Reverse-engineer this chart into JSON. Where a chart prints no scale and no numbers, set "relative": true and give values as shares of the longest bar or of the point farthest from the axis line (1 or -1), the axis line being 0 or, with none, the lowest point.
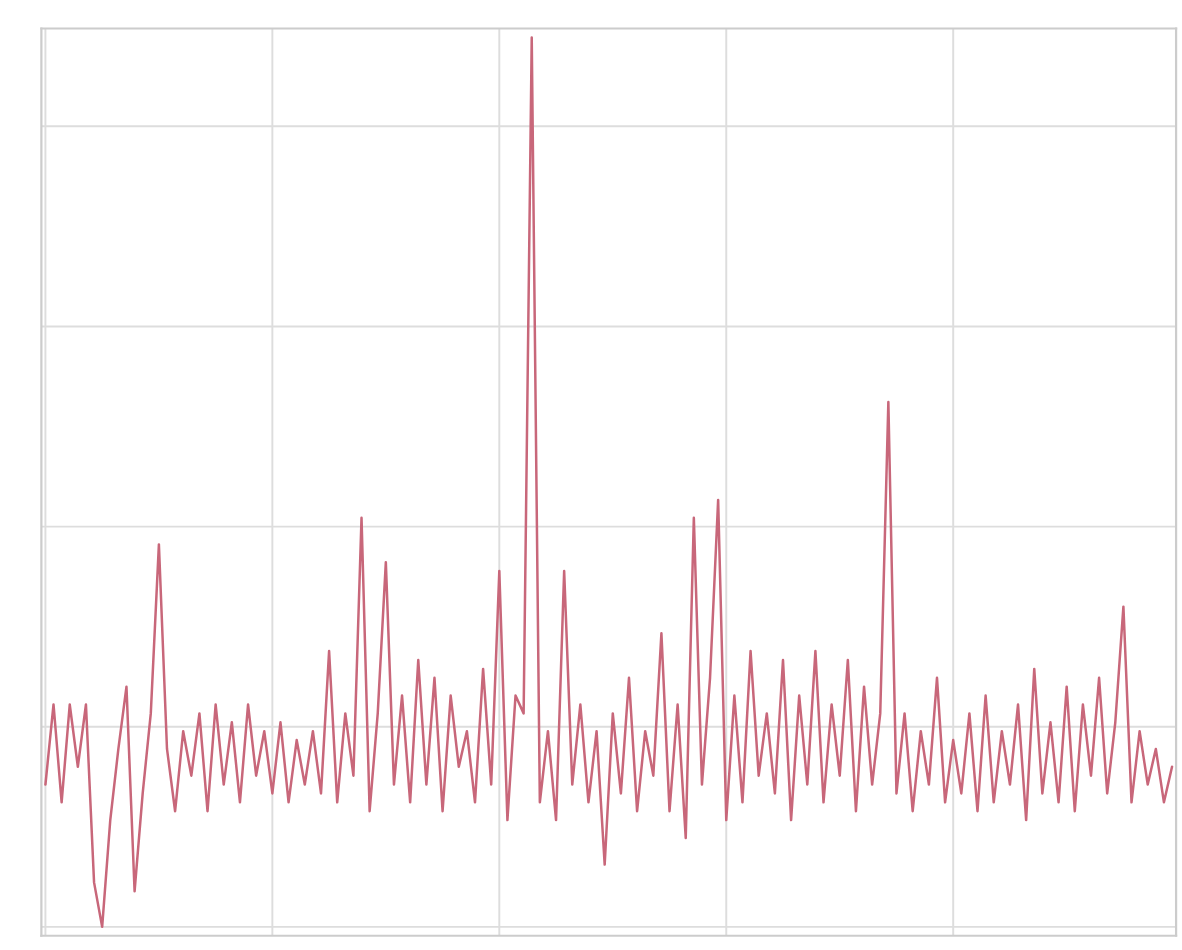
{
  "chart_data": {
    "type": "line",
    "relative": true,
    "grid": true,
    "categories": [
      null,
      null,
      null,
      null,
      null,
      null,
      null,
      null,
      null,
      null,
      null,
      null,
      null,
      null,
      null,
      null,
      null,
      null,
      null,
      null,
      null,
      null,
      null,
      null,
      null,
      null,
      null,
      null,
      null,
      null,
      null,
      null,
      null,
      null,
      null,
      null,
      null,
      null,
      null,
      null,
      null,
      null,
      null,
      null,
      null,
      null,
      null,
      null,
      null,
      null,
      null,
      null,
      null,
      null,
      null,
      null,
      null,
      null,
      null,
      null,
      null,
      null,
      null,
      null,
      null,
      null,
      null,
      null,
      null,
      null,
      null,
      null,
      null,
      null,
      null,
      null,
      null,
      null,
      null,
      null,
      null,
      null,
      null,
      null,
      null,
      null,
      null,
      null,
      null,
      null,
      null,
      null,
      null,
      null,
      null,
      null,
      null,
      null,
      null,
      null,
      null,
      null,
      null,
      null,
      null,
      null,
      null,
      null,
      null,
      null,
      null,
      null,
      null,
      null,
      null,
      null,
      null,
      null,
      null,
      null,
      null,
      null,
      null,
      null,
      null,
      null,
      null,
      null,
      null,
      null,
      null,
      null,
      null,
      null,
      null,
      null,
      null,
      null,
      null,
      null
    ],
    "series": [
      {
        "color": "#c8677a",
        "values": [
          0.16,
          0.25,
          0.14,
          0.25,
          0.18,
          0.25,
          0.05,
          0.0,
          0.12,
          0.2,
          0.27,
          0.04,
          0.15,
          0.24,
          0.43,
          0.2,
          0.13,
          0.22,
          0.17,
          0.24,
          0.13,
          0.25,
          0.16,
          0.23,
          0.14,
          0.25,
          0.17,
          0.22,
          0.15,
          0.23,
          0.14,
          0.21,
          0.16,
          0.22,
          0.15,
          0.31,
          0.14,
          0.24,
          0.17,
          0.46,
          0.13,
          0.24,
          0.41,
          0.16,
          0.26,
          0.14,
          0.3,
          0.16,
          0.28,
          0.13,
          0.26,
          0.18,
          0.22,
          0.14,
          0.29,
          0.16,
          0.4,
          0.12,
          0.26,
          0.24,
          1.0,
          0.14,
          0.22,
          0.12,
          0.4,
          0.16,
          0.25,
          0.14,
          0.22,
          0.07,
          0.24,
          0.15,
          0.28,
          0.13,
          0.22,
          0.17,
          0.33,
          0.13,
          0.25,
          0.1,
          0.46,
          0.16,
          0.28,
          0.48,
          0.12,
          0.26,
          0.14,
          0.31,
          0.17,
          0.24,
          0.15,
          0.3,
          0.12,
          0.26,
          0.16,
          0.31,
          0.14,
          0.25,
          0.17,
          0.3,
          0.13,
          0.27,
          0.16,
          0.24,
          0.59,
          0.15,
          0.24,
          0.13,
          0.22,
          0.16,
          0.28,
          0.14,
          0.21,
          0.15,
          0.24,
          0.13,
          0.26,
          0.14,
          0.22,
          0.16,
          0.25,
          0.12,
          0.29,
          0.15,
          0.23,
          0.14,
          0.27,
          0.13,
          0.25,
          0.17,
          0.28,
          0.15,
          0.23,
          0.36,
          0.14,
          0.22,
          0.16,
          0.2,
          0.14,
          0.18
        ]
      }
    ]
  }
}
